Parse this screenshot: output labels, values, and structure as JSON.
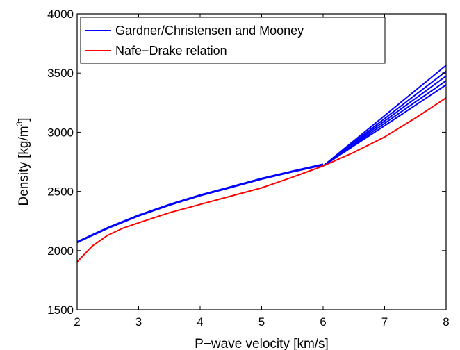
{
  "chart_data": {
    "type": "line",
    "title": "",
    "xlabel": "P−wave velocity [km/s]",
    "ylabel_prefix": "Density [kg/m",
    "ylabel_sup": "3",
    "ylabel_suffix": "]",
    "xlim": [
      2,
      8
    ],
    "ylim": [
      1500,
      4000
    ],
    "xticks": [
      2,
      3,
      4,
      5,
      6,
      7,
      8
    ],
    "yticks": [
      1500,
      2000,
      2500,
      3000,
      3500,
      4000
    ],
    "grid": false,
    "legend_position": "top-left",
    "colors": {
      "gardner": "#0000ff",
      "nafe": "#ff0000"
    },
    "legend": [
      {
        "label": "Gardner/Christensen and Mooney",
        "color": "#0000ff"
      },
      {
        "label": "Nafe−Drake relation",
        "color": "#ff0000"
      }
    ],
    "series": [
      {
        "name": "Gardner/Christensen and Mooney",
        "color": "#0000ff",
        "x": [
          2,
          2.5,
          3,
          3.5,
          4,
          4.5,
          5,
          5.5,
          6
        ],
        "y": [
          2075,
          2195,
          2300,
          2390,
          2470,
          2540,
          2610,
          2672,
          2730
        ]
      },
      {
        "name": "Gardner/Christensen and Mooney",
        "color": "#0000ff",
        "x": [
          2,
          2.5,
          3,
          3.5,
          4,
          4.5,
          5,
          5.5,
          6
        ],
        "y": [
          2068,
          2188,
          2293,
          2383,
          2463,
          2533,
          2603,
          2665,
          2722
        ]
      },
      {
        "name": "Gardner/Christensen and Mooney",
        "color": "#0000ff",
        "x": [
          6,
          7,
          8
        ],
        "y": [
          2715,
          3140,
          3565
        ]
      },
      {
        "name": "Gardner/Christensen and Mooney",
        "color": "#0000ff",
        "x": [
          6,
          7,
          8
        ],
        "y": [
          2715,
          3115,
          3515
        ]
      },
      {
        "name": "Gardner/Christensen and Mooney",
        "color": "#0000ff",
        "x": [
          6,
          7,
          8
        ],
        "y": [
          2715,
          3095,
          3475
        ]
      },
      {
        "name": "Gardner/Christensen and Mooney",
        "color": "#0000ff",
        "x": [
          6,
          7,
          8
        ],
        "y": [
          2715,
          3075,
          3435
        ]
      },
      {
        "name": "Gardner/Christensen and Mooney",
        "color": "#0000ff",
        "x": [
          6,
          7,
          8
        ],
        "y": [
          2715,
          3055,
          3400
        ]
      },
      {
        "name": "Nafe−Drake relation",
        "color": "#ff0000",
        "x": [
          2,
          2.25,
          2.5,
          2.75,
          3,
          3.5,
          4,
          4.5,
          5,
          5.5,
          6,
          6.5,
          7,
          7.5,
          8
        ],
        "y": [
          1905,
          2040,
          2130,
          2190,
          2235,
          2320,
          2390,
          2460,
          2530,
          2620,
          2715,
          2830,
          2960,
          3120,
          3290
        ]
      }
    ]
  }
}
